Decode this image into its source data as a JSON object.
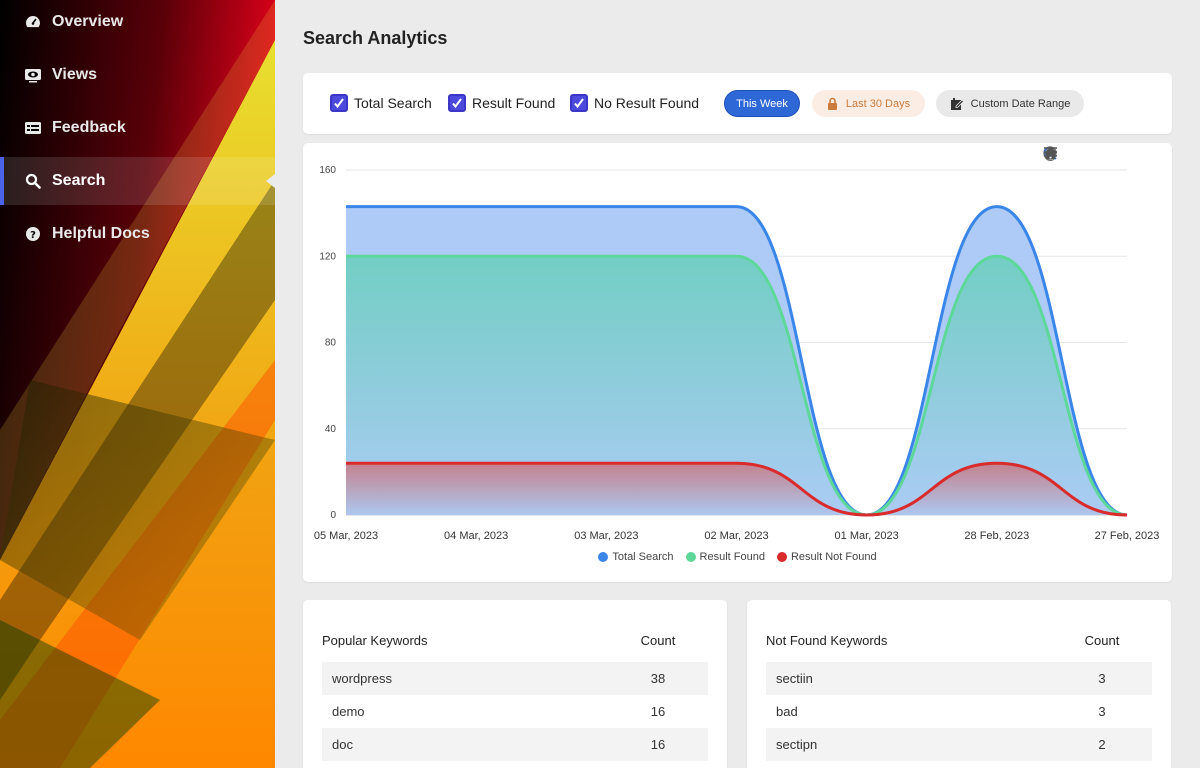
{
  "sidebar": {
    "items": [
      {
        "label": "Overview",
        "icon": "dashboard-icon"
      },
      {
        "label": "Views",
        "icon": "eye-icon"
      },
      {
        "label": "Feedback",
        "icon": "feedback-icon"
      },
      {
        "label": "Search",
        "icon": "search-icon",
        "active": true
      },
      {
        "label": "Helpful Docs",
        "icon": "help-icon"
      }
    ]
  },
  "page": {
    "title": "Search Analytics"
  },
  "filters": {
    "checkboxes": [
      {
        "label": "Total Search",
        "checked": true
      },
      {
        "label": "Result Found",
        "checked": true
      },
      {
        "label": "No Result Found",
        "checked": true
      }
    ],
    "this_week": "This Week",
    "last_30": "Last 30 Days",
    "custom_range": "Custom Date Range"
  },
  "colors": {
    "total": "#3a86e8",
    "found": "#5ed89a",
    "not_found": "#d92b2b",
    "accent": "#2e67d6"
  },
  "chart_data": {
    "type": "area",
    "x": [
      "05 Mar, 2023",
      "04 Mar, 2023",
      "03 Mar, 2023",
      "02 Mar, 2023",
      "01 Mar, 2023",
      "28 Feb, 2023",
      "27 Feb, 2023"
    ],
    "series": [
      {
        "name": "Total Search",
        "values": [
          143,
          143,
          143,
          143,
          0,
          143,
          0
        ]
      },
      {
        "name": "Result Found",
        "values": [
          120,
          120,
          120,
          120,
          0,
          120,
          0
        ]
      },
      {
        "name": "Result Not Found",
        "values": [
          24,
          24,
          24,
          24,
          0,
          24,
          0
        ]
      }
    ],
    "yticks": [
      "0",
      "40",
      "80",
      "120",
      "160"
    ],
    "ylim": [
      0,
      160
    ],
    "grid": true,
    "legend": "bottom"
  },
  "popular": {
    "header_keyword": "Popular Keywords",
    "header_count": "Count",
    "rows": [
      {
        "keyword": "wordpress",
        "count": "38"
      },
      {
        "keyword": "demo",
        "count": "16"
      },
      {
        "keyword": "doc",
        "count": "16"
      }
    ]
  },
  "not_found": {
    "header_keyword": "Not Found Keywords",
    "header_count": "Count",
    "rows": [
      {
        "keyword": "sectiin",
        "count": "3"
      },
      {
        "keyword": "bad",
        "count": "3"
      },
      {
        "keyword": "sectipn",
        "count": "2"
      }
    ]
  }
}
